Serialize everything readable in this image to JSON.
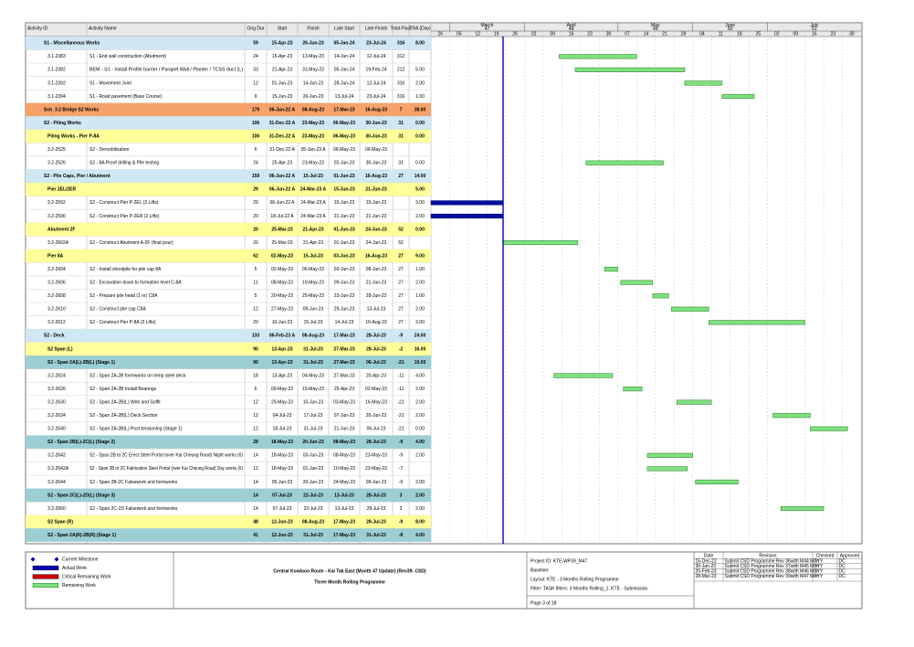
{
  "columns": [
    "Activity ID",
    "Activity Name",
    "Orig Dur",
    "Start",
    "Finish",
    "Late Start",
    "Late Finish",
    "Total Float",
    "TRA (Day)"
  ],
  "timeline": {
    "months": [
      {
        "label": "March",
        "num": "47"
      },
      {
        "label": "April",
        "num": "48"
      },
      {
        "label": "May",
        "num": "49"
      },
      {
        "label": "June",
        "num": "50"
      },
      {
        "label": "July",
        "num": "51"
      }
    ],
    "weeks": [
      "26",
      "05",
      "12",
      "19",
      "26",
      "02",
      "09",
      "16",
      "23",
      "30",
      "07",
      "14",
      "21",
      "28",
      "04",
      "11",
      "18",
      "25",
      "02",
      "09",
      "16",
      "23",
      "30"
    ]
  },
  "rows": [
    {
      "band": "blue",
      "name": "S1 - Miscellaneous Works",
      "dur": 59,
      "start": "15-Apr-23",
      "finish": "26-Jun-23",
      "late_start": "05-Jan-24",
      "late_finish": "23-Jul-24",
      "total_float": 316,
      "tra": "8.00"
    },
    {
      "id": "3.1-2383",
      "name": "S1 - End wall construction (Abutment)",
      "dur": 24,
      "start": "15-Apr-23",
      "finish": "13-May-23",
      "late_start": "14-Jun-24",
      "late_finish": "12-Jul-24",
      "total_float": 312
    },
    {
      "id": "3.1-2382",
      "name": "BEM - S1 - Install Profile barrier / Parapet Wall / Planter / TCSS duct (L)",
      "dur": 33,
      "start": "21-Apr-23",
      "finish": "31-May-23",
      "late_start": "05-Jan-24",
      "late_finish": "19-Feb-24",
      "total_float": 212,
      "tra": "5.00"
    },
    {
      "id": "3.1-2392",
      "name": "S1 - Movement Joint",
      "dur": 12,
      "start": "01-Jun-23",
      "finish": "14-Jun-23",
      "late_start": "28-Jun-24",
      "late_finish": "12-Jul-24",
      "total_float": 316,
      "tra": "2.00"
    },
    {
      "id": "3.1-2394",
      "name": "S1 - Road pavement (Base Course)",
      "dur": 9,
      "start": "15-Jun-23",
      "finish": "26-Jun-23",
      "late_start": "13-Jul-24",
      "late_finish": "23-Jul-24",
      "total_float": 316,
      "tra": "1.00"
    },
    {
      "band": "orange",
      "name": "Sch_3.2 Bridge S2 Works",
      "dur": 179,
      "start": "06-Jun-22 A",
      "finish": "08-Aug-23",
      "late_start": "17-Mar-23",
      "late_finish": "16-Aug-23",
      "total_float": 7,
      "tra": "38.00"
    },
    {
      "band": "blue",
      "name": "S2 - Piling Works",
      "dur": 106,
      "start": "31-Dec-22 A",
      "finish": "23-May-23",
      "late_start": "06-May-23",
      "late_finish": "30-Jun-23",
      "total_float": 31,
      "tra": "0.00"
    },
    {
      "band": "yellow",
      "name": "Piling Works - Pier P-8A",
      "dur": 106,
      "start": "31-Dec-22 A",
      "finish": "23-May-23",
      "late_start": "06-May-23",
      "late_finish": "30-Jun-23",
      "total_float": 31,
      "tra": "0.00"
    },
    {
      "id": "3.2-2525",
      "name": "S2 - Demobilisation",
      "dur": 6,
      "start": "31-Dec-22 A",
      "finish": "05-Jan-23 A",
      "late_start": "06-May-23",
      "late_finish": "06-May-23"
    },
    {
      "id": "3.2-2526",
      "name": "S2 - 8A Proof drilling & Pile testing",
      "dur": 24,
      "start": "25-Apr-23",
      "finish": "23-May-23",
      "late_start": "02-Jun-23",
      "late_finish": "30-Jun-23",
      "total_float": 31,
      "tra": "0.00"
    },
    {
      "band": "blue",
      "name": "S2 - Pile Caps, Pier / Abutment",
      "dur": 159,
      "start": "06-Jun-22 A",
      "finish": "15-Jul-23",
      "late_start": "01-Jun-23",
      "late_finish": "16-Aug-23",
      "total_float": 27,
      "tra": "14.00"
    },
    {
      "band": "yellow",
      "name": "Pier 2EL/2ER",
      "dur": 29,
      "start": "06-Jun-22 A",
      "finish": "24-Mar-23 A",
      "late_start": "15-Jun-23",
      "late_finish": "21-Jun-23",
      "tra": "5.00"
    },
    {
      "id": "3.2-2592",
      "name": "S2 - Construct Pier P-2EL (3 Lifts)",
      "dur": 29,
      "start": "06-Jun-22 A",
      "finish": "24-Mar-23 A",
      "late_start": "15-Jun-23",
      "late_finish": "15-Jun-23",
      "tra": "3.00"
    },
    {
      "id": "3.2-2590",
      "name": "S2 - Construct Pier P-2ER (2 Lifts)",
      "dur": 20,
      "start": "18-Jul-22 A",
      "finish": "24-Mar-23 A",
      "late_start": "21-Jun-23",
      "late_finish": "21-Jun-23",
      "tra": "2.00"
    },
    {
      "band": "yellow",
      "name": "Abutment 2F",
      "dur": 20,
      "start": "25-Mar-23",
      "finish": "21-Apr-23",
      "late_start": "01-Jun-23",
      "late_finish": "24-Jun-23",
      "total_float": 52,
      "tra": "0.00"
    },
    {
      "id": "3.2-2602A",
      "name": "S2 - Construct Abutment A-2F (final pour)",
      "dur": 20,
      "start": "25-Mar-23",
      "finish": "21-Apr-23",
      "late_start": "01-Jun-23",
      "late_finish": "24-Jun-23",
      "total_float": 52
    },
    {
      "band": "yellow",
      "name": "Pier 8A",
      "dur": 62,
      "start": "02-May-23",
      "finish": "15-Jul-23",
      "late_start": "03-Jun-23",
      "late_finish": "16-Aug-23",
      "total_float": 27,
      "tra": "9.00"
    },
    {
      "id": "3.2-2604",
      "name": "S2 - Install shootpile for pile cap 8A",
      "dur": 5,
      "start": "02-May-23",
      "finish": "06-May-23",
      "late_start": "03-Jun-23",
      "late_finish": "08-Jun-23",
      "total_float": 27,
      "tra": "1.00"
    },
    {
      "id": "3.2-2606",
      "name": "S2 - Excavation down to formation level C-8A",
      "dur": 11,
      "start": "08-May-23",
      "finish": "19-May-23",
      "late_start": "09-Jun-23",
      "late_finish": "21-Jun-23",
      "total_float": 27,
      "tra": "2.00"
    },
    {
      "id": "3.2-2608",
      "name": "S2 - Prepare pile head (1 nr) C8A",
      "dur": 5,
      "start": "20-May-23",
      "finish": "25-May-23",
      "late_start": "23-Jun-23",
      "late_finish": "28-Jun-23",
      "total_float": 27,
      "tra": "1.00"
    },
    {
      "id": "3.2-2610",
      "name": "S2 - Construct pile cap C8A",
      "dur": 12,
      "start": "27-May-23",
      "finish": "09-Jun-23",
      "late_start": "29-Jun-23",
      "late_finish": "13-Jul-23",
      "total_float": 27,
      "tra": "2.00"
    },
    {
      "id": "3.2-2612",
      "name": "S2 - Construct Pier P-8A (3 Lifts)",
      "dur": 29,
      "start": "10-Jun-23",
      "finish": "15-Jul-23",
      "late_start": "14-Jul-23",
      "late_finish": "16-Aug-23",
      "total_float": 27,
      "tra": "3.00"
    },
    {
      "band": "blue",
      "name": "S2 - Deck",
      "dur": 133,
      "start": "06-Feb-23 A",
      "finish": "08-Aug-23",
      "late_start": "17-Mar-23",
      "late_finish": "28-Jul-23",
      "total_float": -9,
      "tra": "24.00"
    },
    {
      "band": "yellow",
      "name": "S2 Span (L)",
      "dur": 90,
      "start": "13-Apr-23",
      "finish": "31-Jul-23",
      "late_start": "27-Mar-23",
      "late_finish": "28-Jul-23",
      "total_float": -2,
      "tra": "16.00"
    },
    {
      "band": "teal",
      "name": "S2 - Span 2A(L)-2B(L) (Stage 1)",
      "dur": 90,
      "start": "13-Apr-23",
      "finish": "31-Jul-23",
      "late_start": "27-Mar-23",
      "late_finish": "06-Jul-23",
      "total_float": -21,
      "tra": "10.00"
    },
    {
      "id": "3.2-2624",
      "name": "S2 - Span 2A-2B formworks on temp steel deck",
      "dur": 18,
      "start": "13-Apr-23",
      "finish": "04-May-23",
      "late_start": "27-Mar-23",
      "late_finish": "20-Apr-23",
      "total_float": -11,
      "tra": "4.00"
    },
    {
      "id": "3.2-2626",
      "name": "S2 - Span 2A-2B Install Bearings",
      "dur": 6,
      "start": "09-May-23",
      "finish": "15-May-23",
      "late_start": "25-Apr-23",
      "late_finish": "02-May-23",
      "total_float": -11,
      "tra": "2.00"
    },
    {
      "id": "3.2-2630",
      "name": "S2 - Span 2A-2B(L) Web and Soffit",
      "dur": 12,
      "start": "29-May-23",
      "finish": "10-Jun-23",
      "late_start": "03-May-23",
      "late_finish": "16-May-23",
      "total_float": -21,
      "tra": "2.00"
    },
    {
      "id": "3.2-2634",
      "name": "S2 - Span 2A-2B(L) Deck Section",
      "dur": 12,
      "start": "04-Jul-23",
      "finish": "17-Jul-23",
      "late_start": "07-Jun-23",
      "late_finish": "20-Jun-23",
      "total_float": -21,
      "tra": "2.00"
    },
    {
      "id": "3.2-2640",
      "name": "S2 - Span 2A-2B(L) Post-tensioning (Stage 1)",
      "dur": 12,
      "start": "18-Jul-23",
      "finish": "31-Jul-23",
      "late_start": "21-Jun-23",
      "late_finish": "06-Jul-23",
      "total_float": -21,
      "tra": "0.00"
    },
    {
      "band": "teal",
      "name": "S2 - Span 2B(L)-2C(L) (Stage 2)",
      "dur": 28,
      "start": "18-May-23",
      "finish": "20-Jun-23",
      "late_start": "08-May-23",
      "late_finish": "28-Jul-23",
      "total_float": -9,
      "tra": "4.00"
    },
    {
      "id": "3.2-2642",
      "name": "S2 - Span 2B to 2C Erect Steel Portal (over Kai Cheung Road) Night works (6)",
      "dur": 14,
      "start": "18-May-23",
      "finish": "03-Jun-23",
      "late_start": "08-May-23",
      "late_finish": "23-May-23",
      "total_float": -9,
      "tra": "2.00"
    },
    {
      "id": "3.2-2642A",
      "name": "S2 - Span 2B to 2C Fabrication Steel Portal (over Kai Cheung Road) Day works (6)",
      "dur": 12,
      "start": "18-May-23",
      "finish": "01-Jun-23",
      "late_start": "10-May-23",
      "late_finish": "23-May-23",
      "total_float": -7
    },
    {
      "id": "3.2-2644",
      "name": "S2 - Span 2B-2C Falsework and formworks",
      "dur": 14,
      "start": "05-Jun-23",
      "finish": "20-Jun-23",
      "late_start": "24-May-23",
      "late_finish": "09-Jun-23",
      "total_float": -9,
      "tra": "2.00"
    },
    {
      "band": "teal",
      "name": "S2 - Span 2C(L)-2D(L) (Stage 3)",
      "dur": 14,
      "start": "07-Jul-23",
      "finish": "22-Jul-23",
      "late_start": "13-Jul-23",
      "late_finish": "28-Jul-23",
      "total_float": 3,
      "tra": "2.00"
    },
    {
      "id": "3.2-2660",
      "name": "S2 - Span 2C-2D Falsework and formworks",
      "dur": 14,
      "start": "07-Jul-23",
      "finish": "22-Jul-23",
      "late_start": "13-Jul-23",
      "late_finish": "28-Jul-23",
      "total_float": 3,
      "tra": "2.00"
    },
    {
      "band": "yellow",
      "name": "S2 Span (R)",
      "dur": 48,
      "start": "12-Jun-23",
      "finish": "08-Aug-23",
      "late_start": "17-May-23",
      "late_finish": "28-Jul-23",
      "total_float": -9,
      "tra": "8.00"
    },
    {
      "band": "teal",
      "name": "S2 - Span 2A(R)-2B(R) (Stage 1)",
      "dur": 41,
      "start": "12-Jun-23",
      "finish": "31-Jul-23",
      "late_start": "17-May-23",
      "late_finish": "31-Jul-23",
      "total_float": -8,
      "tra": "4.00"
    }
  ],
  "legend": [
    "Current Milestone",
    "Actual Work",
    "Critical Remaining Work",
    "Remaining Work"
  ],
  "footer": {
    "title": "Central Kowloon Route - Kai Tak East (Month 47 Update) (Rev39- CSD)",
    "subtitle": "Three Month Rolling Programme",
    "info": [
      "Project ID: KTE-WP39_M47",
      "Baseline:",
      "Layout: KTE - 3 Months Rolling Programme",
      "Filter: TASK filters: 3 Months Rolling_1, KTE - Submission."
    ],
    "page": "Page 3 of 18",
    "revision_header": [
      "Date",
      "Revision",
      "Checked",
      "Approved"
    ],
    "revisions": [
      [
        "15-Dec-22",
        "Submit CSD Programme Rev 36with M44 Mon",
        "TYY",
        "DC"
      ],
      [
        "30-Jan-23",
        "Submit CSD Programme Rev 37with M45 Mon",
        "TYY",
        "DC"
      ],
      [
        "25-Feb-23",
        "Submit CSD Programme Rev 38with M46 Mon",
        "TYY",
        "DC"
      ],
      [
        "28-Mar-23",
        "Submit CSD Programme Rev 39with M47 Mon",
        "TYY",
        "DC"
      ]
    ]
  }
}
